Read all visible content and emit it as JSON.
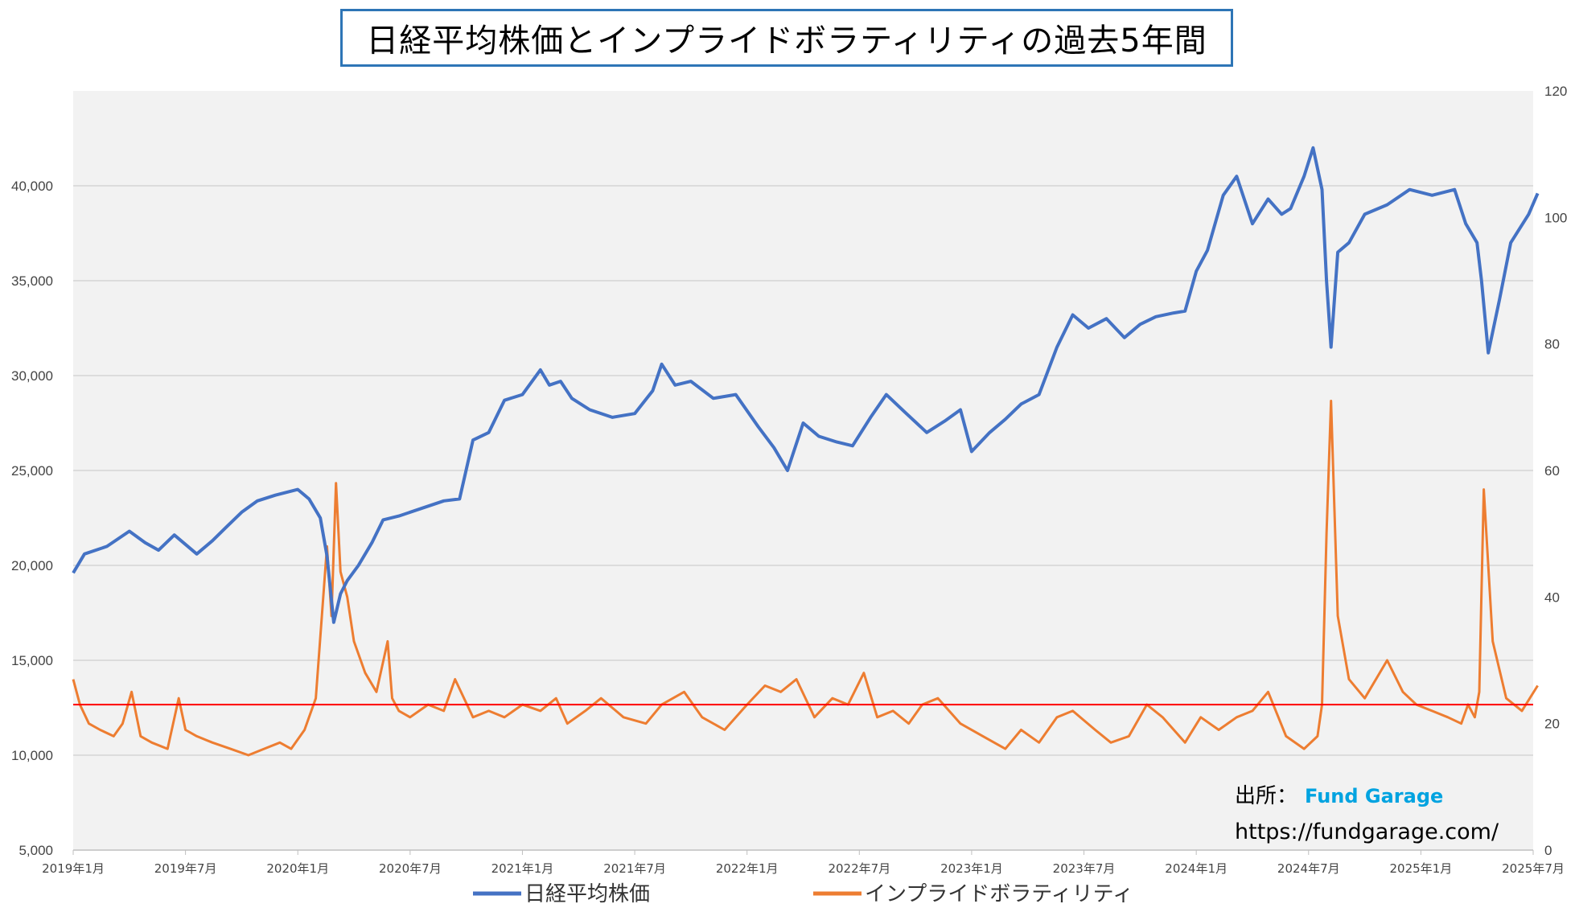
{
  "chart_data": {
    "type": "line",
    "title": "日経平均株価とインプライドボラティリティの過去5年間",
    "x_tick_labels": [
      "2019年1月",
      "2019年7月",
      "2020年1月",
      "2020年7月",
      "2021年1月",
      "2021年7月",
      "2022年1月",
      "2022年7月",
      "2023年1月",
      "2023年7月",
      "2024年1月",
      "2024年7月",
      "2025年1月",
      "2025年7月"
    ],
    "y_left": {
      "range": [
        5000,
        45000
      ],
      "ticks": [
        "5,000",
        "10,000",
        "15,000",
        "20,000",
        "25,000",
        "30,000",
        "35,000",
        "40,000"
      ]
    },
    "y_right": {
      "range": [
        0,
        120
      ],
      "ticks": [
        "0",
        "20",
        "40",
        "60",
        "80",
        "100",
        "120"
      ]
    },
    "grid": true,
    "legend_position": "bottom",
    "reference_line": {
      "axis": "right",
      "value": 23,
      "color": "#FF0000"
    },
    "series": [
      {
        "name": "日経平均株価",
        "axis": "left",
        "color": "#4472C4",
        "x": [
          2019.0,
          2019.05,
          2019.15,
          2019.25,
          2019.32,
          2019.38,
          2019.45,
          2019.55,
          2019.62,
          2019.68,
          2019.75,
          2019.82,
          2019.9,
          2020.0,
          2020.05,
          2020.1,
          2020.13,
          2020.16,
          2020.19,
          2020.22,
          2020.27,
          2020.33,
          2020.38,
          2020.45,
          2020.55,
          2020.65,
          2020.72,
          2020.78,
          2020.85,
          2020.92,
          2021.0,
          2021.08,
          2021.12,
          2021.17,
          2021.22,
          2021.3,
          2021.4,
          2021.5,
          2021.58,
          2021.62,
          2021.68,
          2021.75,
          2021.85,
          2021.95,
          2022.05,
          2022.12,
          2022.18,
          2022.25,
          2022.32,
          2022.4,
          2022.47,
          2022.55,
          2022.62,
          2022.7,
          2022.8,
          2022.88,
          2022.95,
          2023.0,
          2023.08,
          2023.15,
          2023.22,
          2023.3,
          2023.38,
          2023.45,
          2023.52,
          2023.6,
          2023.68,
          2023.75,
          2023.82,
          2023.9,
          2023.95,
          2024.0,
          2024.05,
          2024.12,
          2024.18,
          2024.25,
          2024.32,
          2024.38,
          2024.42,
          2024.48,
          2024.52,
          2024.56,
          2024.58,
          2024.6,
          2024.63,
          2024.68,
          2024.75,
          2024.85,
          2024.95,
          2025.05,
          2025.15,
          2025.2,
          2025.25,
          2025.27,
          2025.3,
          2025.35,
          2025.4,
          2025.48,
          2025.52
        ],
        "values": [
          19600,
          20600,
          21000,
          21800,
          21200,
          20800,
          21600,
          20600,
          21300,
          22000,
          22800,
          23400,
          23700,
          24000,
          23500,
          22500,
          20500,
          17000,
          18500,
          19200,
          20000,
          21200,
          22400,
          22600,
          23000,
          23400,
          23500,
          26600,
          27000,
          28700,
          29000,
          30300,
          29500,
          29700,
          28800,
          28200,
          27800,
          28000,
          29200,
          30600,
          29500,
          29700,
          28800,
          29000,
          27300,
          26200,
          25000,
          27500,
          26800,
          26500,
          26300,
          27800,
          29000,
          28100,
          27000,
          27600,
          28200,
          26000,
          27000,
          27700,
          28500,
          29000,
          31500,
          33200,
          32500,
          33000,
          32000,
          32700,
          33100,
          33300,
          33400,
          35500,
          36600,
          39500,
          40500,
          38000,
          39300,
          38500,
          38800,
          40500,
          42000,
          39800,
          35000,
          31500,
          36500,
          37000,
          38500,
          39000,
          39800,
          39500,
          39800,
          38000,
          37000,
          35000,
          31200,
          34000,
          37000,
          38500,
          39600
        ]
      },
      {
        "name": "インプライドボラティリティ",
        "axis": "right",
        "color": "#ED7D31",
        "x": [
          2019.0,
          2019.03,
          2019.07,
          2019.12,
          2019.18,
          2019.22,
          2019.26,
          2019.3,
          2019.35,
          2019.42,
          2019.47,
          2019.5,
          2019.55,
          2019.62,
          2019.7,
          2019.78,
          2019.85,
          2019.92,
          2019.97,
          2020.03,
          2020.08,
          2020.13,
          2020.15,
          2020.17,
          2020.19,
          2020.22,
          2020.25,
          2020.3,
          2020.35,
          2020.4,
          2020.42,
          2020.45,
          2020.5,
          2020.58,
          2020.65,
          2020.7,
          2020.78,
          2020.85,
          2020.92,
          2021.0,
          2021.08,
          2021.15,
          2021.2,
          2021.28,
          2021.35,
          2021.45,
          2021.55,
          2021.62,
          2021.72,
          2021.8,
          2021.9,
          2022.0,
          2022.08,
          2022.15,
          2022.22,
          2022.3,
          2022.38,
          2022.45,
          2022.52,
          2022.58,
          2022.65,
          2022.72,
          2022.78,
          2022.85,
          2022.95,
          2023.05,
          2023.15,
          2023.22,
          2023.3,
          2023.38,
          2023.45,
          2023.55,
          2023.62,
          2023.7,
          2023.78,
          2023.85,
          2023.95,
          2024.02,
          2024.1,
          2024.18,
          2024.25,
          2024.32,
          2024.4,
          2024.48,
          2024.54,
          2024.56,
          2024.58,
          2024.6,
          2024.63,
          2024.68,
          2024.75,
          2024.85,
          2024.92,
          2024.98,
          2025.05,
          2025.12,
          2025.18,
          2025.21,
          2025.24,
          2025.26,
          2025.28,
          2025.32,
          2025.38,
          2025.45,
          2025.52
        ],
        "values": [
          27,
          23,
          20,
          19,
          18,
          20,
          25,
          18,
          17,
          16,
          24,
          19,
          18,
          17,
          16,
          15,
          16,
          17,
          16,
          19,
          24,
          48,
          37,
          58,
          44,
          40,
          33,
          28,
          25,
          33,
          24,
          22,
          21,
          23,
          22,
          27,
          21,
          22,
          21,
          23,
          22,
          24,
          20,
          22,
          24,
          21,
          20,
          23,
          25,
          21,
          19,
          23,
          26,
          25,
          27,
          21,
          24,
          23,
          28,
          21,
          22,
          20,
          23,
          24,
          20,
          18,
          16,
          19,
          17,
          21,
          22,
          19,
          17,
          18,
          23,
          21,
          17,
          21,
          19,
          21,
          22,
          25,
          18,
          16,
          18,
          23,
          50,
          71,
          37,
          27,
          24,
          30,
          25,
          23,
          22,
          21,
          20,
          23,
          21,
          25,
          57,
          33,
          24,
          22,
          26
        ]
      }
    ],
    "source": {
      "label": "出所：",
      "name": "Fund Garage",
      "url": "https://fundgarage.com/"
    }
  }
}
